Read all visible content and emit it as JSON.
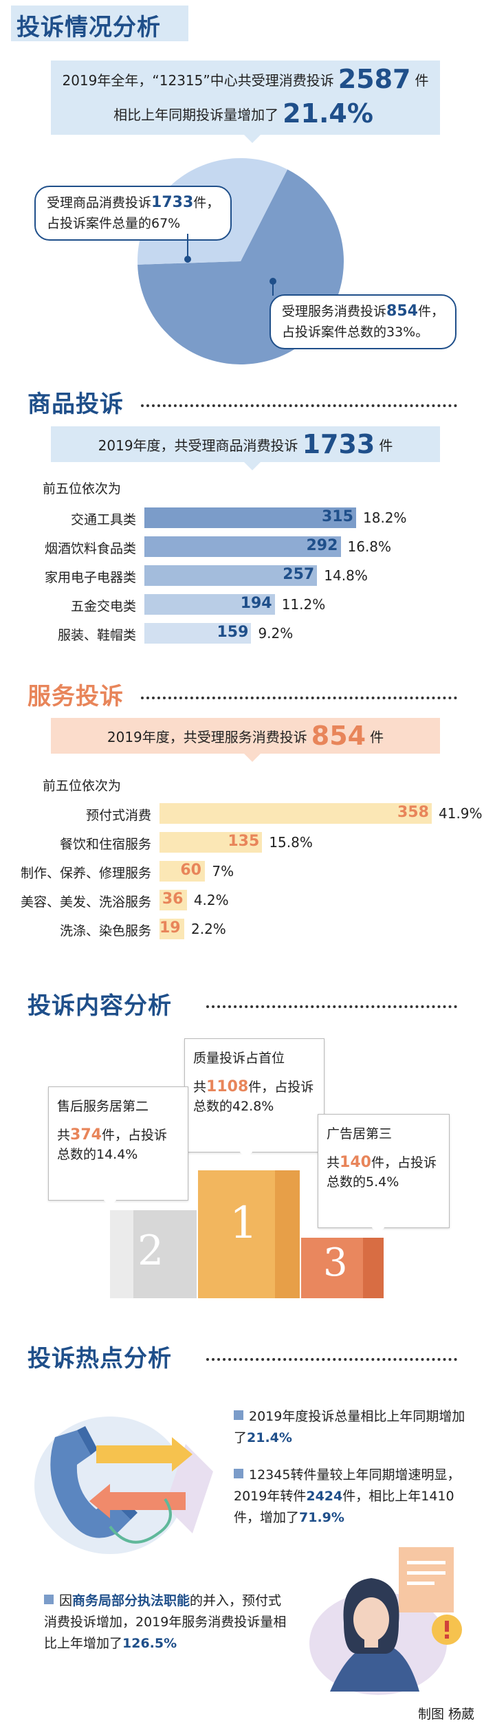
{
  "section1": {
    "title": "投诉情况分析",
    "banner_line1_prefix": "2019年全年，“12315”中心共受理消费投诉",
    "banner_line1_num": "2587",
    "banner_line1_suffix": "件",
    "banner_line2_prefix": "相比上年同期投诉量增加了",
    "banner_line2_num": "21.4%",
    "goods_bubble_line1_prefix": "受理商品消费投诉",
    "goods_bubble_line1_num": "1733",
    "goods_bubble_line1_suffix": "件，",
    "goods_bubble_line2": "占投诉案件总量的67%",
    "service_bubble_line1_prefix": "受理服务消费投诉",
    "service_bubble_line1_num": "854",
    "service_bubble_line1_suffix": "件，",
    "service_bubble_line2": "占投诉案件总数的33%。"
  },
  "section2": {
    "title": "商品投诉",
    "banner_prefix": "2019年度，共受理商品消费投诉",
    "banner_num": "1733",
    "banner_suffix": "件",
    "subtitle": "前五位依次为"
  },
  "section3": {
    "title": "服务投诉",
    "banner_prefix": "2019年度，共受理服务消费投诉",
    "banner_num": "854",
    "banner_suffix": "件",
    "subtitle": "前五位依次为"
  },
  "section4": {
    "title": "投诉内容分析",
    "first_title": "质量投诉占首位",
    "first_prefix": "共",
    "first_num": "1108",
    "first_suffix": "件，占投诉总数的42.8%",
    "second_title": "售后服务居第二",
    "second_prefix": "共",
    "second_num": "374",
    "second_suffix": "件，占投诉总数的14.4%",
    "third_title": "广告居第三",
    "third_prefix": "共",
    "third_num": "140",
    "third_suffix": "件，占投诉总数的5.4%",
    "podium_labels": [
      "1",
      "2",
      "3"
    ]
  },
  "section5": {
    "title": "投诉热点分析",
    "point1_text": "2019年度投诉总量相比上年同期增加了",
    "point1_hl": "21.4%",
    "point2_pre": "12345转件量较上年同期增速明显，2019年转件",
    "point2_hl1": "2424",
    "point2_mid": "件，相比上年1410件，增加了",
    "point2_hl2": "71.9%",
    "point3_pre": "因",
    "point3_hl1": "商务局部分执法职能",
    "point3_mid": "的并入，预付式消费投诉增加，2019年服务消费投诉量相比上年增加了",
    "point3_hl2": "126.5%"
  },
  "footer": {
    "credit": "制图 杨葳"
  },
  "colors": {
    "blue_dark": "#1f4f8a",
    "orange": "#e8855a",
    "pie_goods": "#7b9cc9",
    "pie_service": "#c5d8f0"
  },
  "chart_data": [
    {
      "type": "pie",
      "title": "",
      "slices": [
        {
          "name": "受理商品消费投诉",
          "value": 1733,
          "percent": 67
        },
        {
          "name": "受理服务消费投诉",
          "value": 854,
          "percent": 33
        }
      ]
    },
    {
      "type": "bar",
      "orientation": "horizontal",
      "title": "",
      "categories": [
        "交通工具类",
        "烟酒饮料食品类",
        "家用电子电器类",
        "五金交电类",
        "服装、鞋帽类"
      ],
      "values": [
        315,
        292,
        257,
        194,
        159
      ],
      "percents": [
        "18.2%",
        "16.8%",
        "14.8%",
        "11.2%",
        "9.2%"
      ],
      "colors": [
        "#7b9cc9",
        "#8eabd3",
        "#a3bcdc",
        "#b9cde6",
        "#d2e0f1"
      ]
    },
    {
      "type": "bar",
      "orientation": "horizontal",
      "title": "",
      "categories": [
        "预付式消费",
        "餐饮和住宿服务",
        "制作、保养、修理服务",
        "美容、美发、洗浴服务",
        "洗涤、染色服务"
      ],
      "values": [
        358,
        135,
        60,
        36,
        19
      ],
      "percents": [
        "41.9%",
        "15.8%",
        "7%",
        "4.2%",
        "2.2%"
      ],
      "colors": [
        "#fbe7b5",
        "#fbe7b5",
        "#fbe7b5",
        "#fbe7b5",
        "#fbe7b5"
      ]
    }
  ]
}
